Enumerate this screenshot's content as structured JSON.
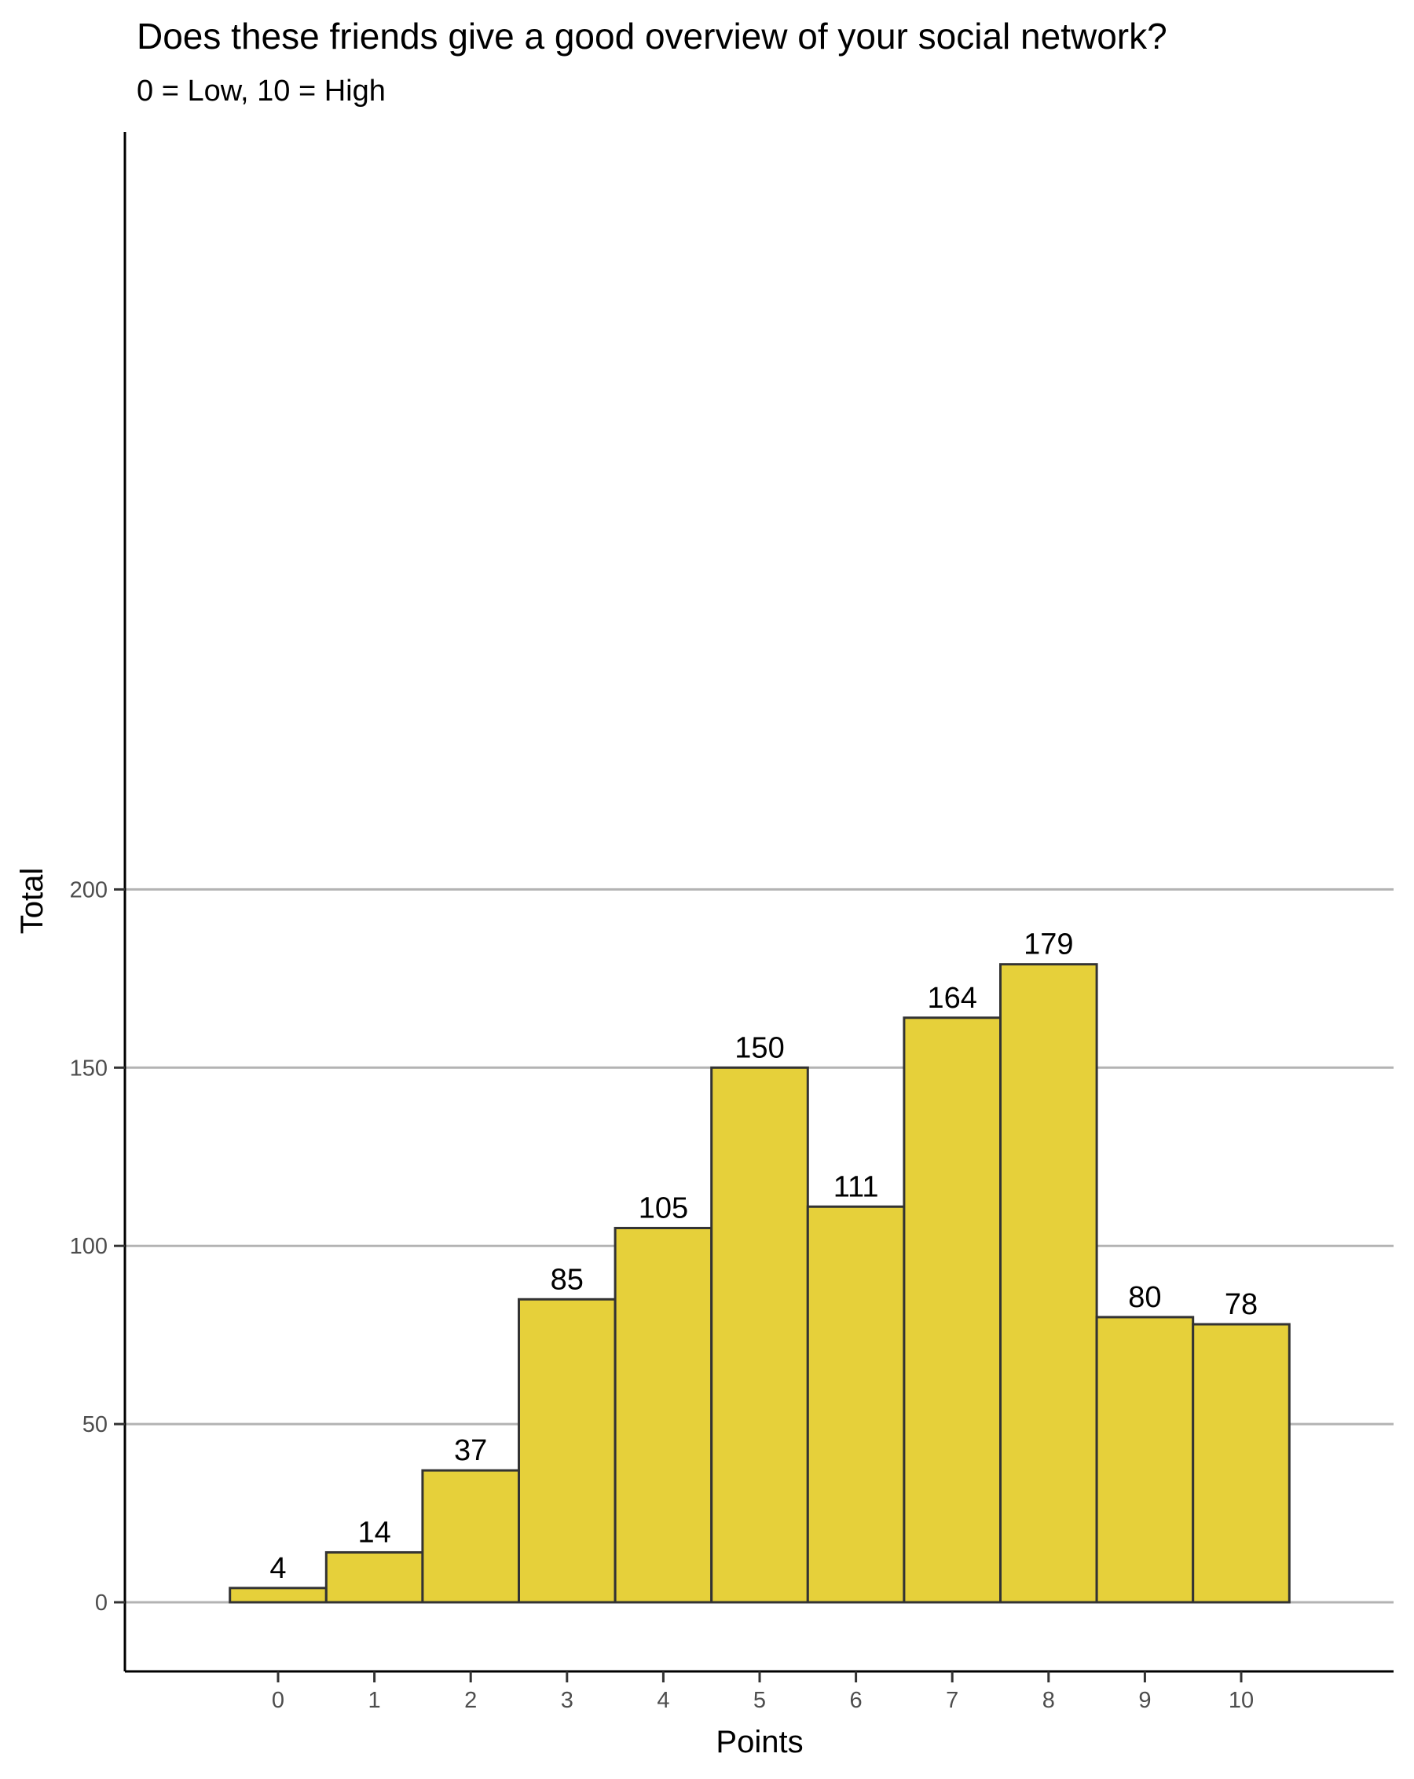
{
  "chart_data": {
    "type": "bar",
    "title": "Does these friends give a good overview of your social network?",
    "subtitle": "0 = Low, 10 = High",
    "xlabel": "Points",
    "ylabel": "Total",
    "categories": [
      "0",
      "1",
      "2",
      "3",
      "4",
      "5",
      "6",
      "7",
      "8",
      "9",
      "10"
    ],
    "values": [
      4,
      14,
      37,
      85,
      105,
      150,
      111,
      164,
      179,
      80,
      78
    ],
    "ylim": [
      0,
      200
    ],
    "yticks": [
      "0",
      "50",
      "100",
      "150",
      "200"
    ],
    "grid": "horizontal",
    "legend": "none",
    "colors": {
      "bar_fill": "#E6D03A",
      "bar_stroke": "#333333",
      "grid": "#b3b3b3",
      "axis": "#000000"
    }
  }
}
